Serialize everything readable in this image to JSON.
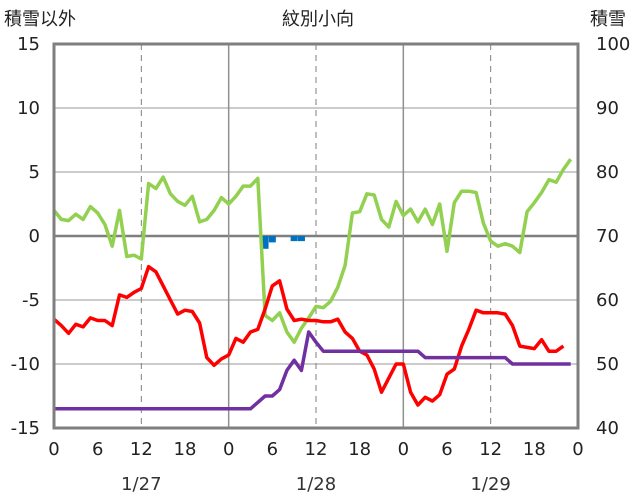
{
  "chart_data": {
    "type": "line",
    "title": "紋別小向",
    "left_axis_label": "積雪以外",
    "right_axis_label": "積雪",
    "left_ylim": [
      -15,
      15
    ],
    "left_yticks": [
      "15",
      "10",
      "5",
      "0",
      "-5",
      "-10",
      "-15"
    ],
    "right_ylim": [
      40,
      100
    ],
    "right_yticks": [
      "100",
      "90",
      "80",
      "70",
      "60",
      "50",
      "40"
    ],
    "x_range_hours": [
      0,
      72
    ],
    "x_tick_labels": [
      "0",
      "6",
      "12",
      "18",
      "0",
      "6",
      "12",
      "18",
      "0",
      "6",
      "12",
      "18",
      "0"
    ],
    "date_labels": [
      {
        "label": "1/27",
        "at_hour": 12
      },
      {
        "label": "1/28",
        "at_hour": 36
      },
      {
        "label": "1/29",
        "at_hour": 60
      }
    ],
    "grid": "dashed vertical every 12h; solid vertical at day boundaries; horizontal at each tick",
    "legend": "none",
    "series": [
      {
        "color": "#92d050",
        "axis": "left",
        "values": [
          2.0,
          1.3,
          1.2,
          1.7,
          1.3,
          2.3,
          1.8,
          0.9,
          -0.8,
          2.0,
          -1.6,
          -1.5,
          -1.8,
          4.1,
          3.7,
          4.6,
          3.3,
          2.7,
          2.4,
          3.1,
          1.1,
          1.3,
          2.0,
          3.0,
          2.5,
          3.1,
          3.9,
          3.9,
          4.5,
          -6.2,
          -6.6,
          -6.0,
          -7.5,
          -8.3,
          -7.2,
          -6.4,
          -5.5,
          -5.6,
          -5.1,
          -4.0,
          -2.3,
          1.8,
          1.9,
          3.3,
          3.2,
          1.3,
          0.7,
          2.7,
          1.6,
          2.1,
          1.1,
          2.1,
          0.9,
          2.5,
          -1.2,
          2.6,
          3.5,
          3.5,
          3.4,
          1.0,
          -0.4,
          -0.8,
          -0.6,
          -0.8,
          -1.3,
          1.9,
          2.6,
          3.4,
          4.4,
          4.2,
          5.2,
          6.0
        ]
      },
      {
        "color": "#ff0000",
        "axis": "left",
        "values": [
          -6.5,
          -7.0,
          -7.6,
          -6.9,
          -7.1,
          -6.4,
          -6.6,
          -6.6,
          -7.0,
          -4.6,
          -4.8,
          -4.4,
          -4.1,
          -2.4,
          -2.8,
          -3.9,
          -5.0,
          -6.1,
          -5.8,
          -5.9,
          -6.8,
          -9.5,
          -10.1,
          -9.6,
          -9.3,
          -8.0,
          -8.3,
          -7.5,
          -7.3,
          -5.7,
          -3.9,
          -3.5,
          -5.7,
          -6.6,
          -6.5,
          -6.6,
          -6.6,
          -6.7,
          -6.7,
          -6.5,
          -7.5,
          -8.0,
          -9.0,
          -9.3,
          -10.4,
          -12.2,
          -11.1,
          -10.0,
          -10.0,
          -12.2,
          -13.2,
          -12.6,
          -12.9,
          -12.4,
          -10.8,
          -10.4,
          -8.6,
          -7.3,
          -5.8,
          -6.0,
          -6.0,
          -6.0,
          -6.1,
          -7.0,
          -8.6,
          -8.7,
          -8.8,
          -8.1,
          -9.0,
          -9.0,
          -8.6
        ]
      },
      {
        "color": "#7030a0",
        "axis": "left",
        "values": [
          -13.5,
          -13.5,
          -13.5,
          -13.5,
          -13.5,
          -13.5,
          -13.5,
          -13.5,
          -13.5,
          -13.5,
          -13.5,
          -13.5,
          -13.5,
          -13.5,
          -13.5,
          -13.5,
          -13.5,
          -13.5,
          -13.5,
          -13.5,
          -13.5,
          -13.5,
          -13.5,
          -13.5,
          -13.5,
          -13.5,
          -13.5,
          -13.5,
          -13.0,
          -12.5,
          -12.5,
          -12.0,
          -10.5,
          -9.7,
          -10.5,
          -7.5,
          -8.3,
          -9.0,
          -9.0,
          -9.0,
          -9.0,
          -9.0,
          -9.0,
          -9.0,
          -9.0,
          -9.0,
          -9.0,
          -9.0,
          -9.0,
          -9.0,
          -9.0,
          -9.5,
          -9.5,
          -9.5,
          -9.5,
          -9.5,
          -9.5,
          -9.5,
          -9.5,
          -9.5,
          -9.5,
          -9.5,
          -9.5,
          -10.0,
          -10.0,
          -10.0,
          -10.0,
          -10.0,
          -10.0,
          -10.0,
          -10.0,
          -10.0
        ]
      },
      {
        "color": "#0070c0",
        "axis": "left",
        "type": "bar",
        "bars": [
          {
            "hour": 29,
            "value": -1.0
          },
          {
            "hour": 30,
            "value": -0.5
          },
          {
            "hour": 33,
            "value": -0.4
          },
          {
            "hour": 34,
            "value": -0.4
          }
        ]
      }
    ]
  }
}
